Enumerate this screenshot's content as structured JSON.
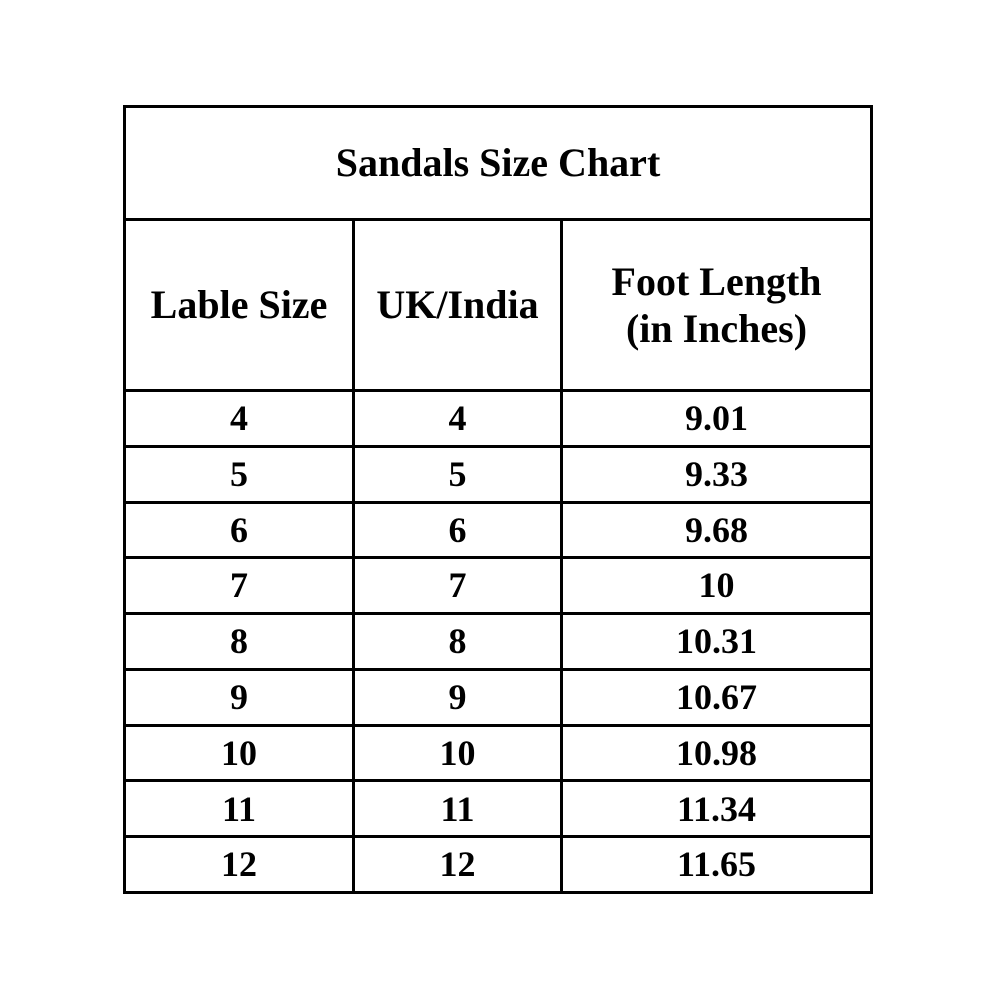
{
  "table": {
    "title": "Sandals Size Chart",
    "columns": [
      {
        "label": "Lable Size"
      },
      {
        "label": "UK/India"
      },
      {
        "label": "Foot Length",
        "sublabel": "(in Inches)"
      }
    ],
    "rows": [
      [
        "4",
        "4",
        "9.01"
      ],
      [
        "5",
        "5",
        "9.33"
      ],
      [
        "6",
        "6",
        "9.68"
      ],
      [
        "7",
        "7",
        "10"
      ],
      [
        "8",
        "8",
        "10.31"
      ],
      [
        "9",
        "9",
        "10.67"
      ],
      [
        "10",
        "10",
        "10.98"
      ],
      [
        "11",
        "11",
        "11.34"
      ],
      [
        "12",
        "12",
        "11.65"
      ]
    ]
  },
  "chart_data": {
    "type": "table",
    "title": "Sandals Size Chart",
    "columns": [
      "Lable Size",
      "UK/India",
      "Foot Length (in Inches)"
    ],
    "rows": [
      [
        4,
        4,
        9.01
      ],
      [
        5,
        5,
        9.33
      ],
      [
        6,
        6,
        9.68
      ],
      [
        7,
        7,
        10
      ],
      [
        8,
        8,
        10.31
      ],
      [
        9,
        9,
        10.67
      ],
      [
        10,
        10,
        10.98
      ],
      [
        11,
        11,
        11.34
      ],
      [
        12,
        12,
        11.65
      ]
    ]
  },
  "colors": {
    "background": "#ffffff",
    "border": "#000000",
    "text": "#000000"
  }
}
